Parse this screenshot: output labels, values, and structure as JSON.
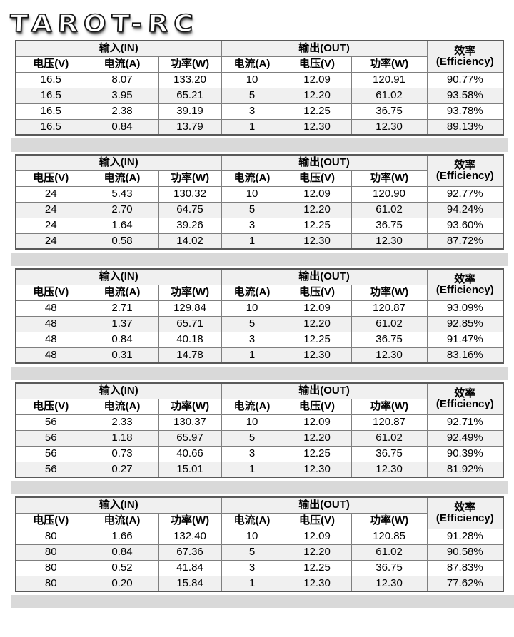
{
  "logo": {
    "text": "TAROT-RC"
  },
  "table_headers": {
    "input_group": "输入(IN)",
    "output_group": "输出(OUT)",
    "efficiency_line1": "效率",
    "efficiency_line2": "(Efficiency)",
    "columns": [
      "电压(V)",
      "电流(A)",
      "功率(W)",
      "电流(A)",
      "电压(V)",
      "功率(W)"
    ]
  },
  "tables": [
    {
      "input_voltage": "16.5",
      "rows": [
        [
          "16.5",
          "8.07",
          "133.20",
          "10",
          "12.09",
          "120.91",
          "90.77%"
        ],
        [
          "16.5",
          "3.95",
          "65.21",
          "5",
          "12.20",
          "61.02",
          "93.58%"
        ],
        [
          "16.5",
          "2.38",
          "39.19",
          "3",
          "12.25",
          "36.75",
          "93.78%"
        ],
        [
          "16.5",
          "0.84",
          "13.79",
          "1",
          "12.30",
          "12.30",
          "89.13%"
        ]
      ]
    },
    {
      "input_voltage": "24",
      "rows": [
        [
          "24",
          "5.43",
          "130.32",
          "10",
          "12.09",
          "120.90",
          "92.77%"
        ],
        [
          "24",
          "2.70",
          "64.75",
          "5",
          "12.20",
          "61.02",
          "94.24%"
        ],
        [
          "24",
          "1.64",
          "39.26",
          "3",
          "12.25",
          "36.75",
          "93.60%"
        ],
        [
          "24",
          "0.58",
          "14.02",
          "1",
          "12.30",
          "12.30",
          "87.72%"
        ]
      ]
    },
    {
      "input_voltage": "48",
      "rows": [
        [
          "48",
          "2.71",
          "129.84",
          "10",
          "12.09",
          "120.87",
          "93.09%"
        ],
        [
          "48",
          "1.37",
          "65.71",
          "5",
          "12.20",
          "61.02",
          "92.85%"
        ],
        [
          "48",
          "0.84",
          "40.18",
          "3",
          "12.25",
          "36.75",
          "91.47%"
        ],
        [
          "48",
          "0.31",
          "14.78",
          "1",
          "12.30",
          "12.30",
          "83.16%"
        ]
      ]
    },
    {
      "input_voltage": "56",
      "rows": [
        [
          "56",
          "2.33",
          "130.37",
          "10",
          "12.09",
          "120.87",
          "92.71%"
        ],
        [
          "56",
          "1.18",
          "65.97",
          "5",
          "12.20",
          "61.02",
          "92.49%"
        ],
        [
          "56",
          "0.73",
          "40.66",
          "3",
          "12.25",
          "36.75",
          "90.39%"
        ],
        [
          "56",
          "0.27",
          "15.01",
          "1",
          "12.30",
          "12.30",
          "81.92%"
        ]
      ]
    },
    {
      "input_voltage": "80",
      "rows": [
        [
          "80",
          "1.66",
          "132.40",
          "10",
          "12.09",
          "120.85",
          "91.28%"
        ],
        [
          "80",
          "0.84",
          "67.36",
          "5",
          "12.20",
          "61.02",
          "90.58%"
        ],
        [
          "80",
          "0.52",
          "41.84",
          "3",
          "12.25",
          "36.75",
          "87.83%"
        ],
        [
          "80",
          "0.20",
          "15.84",
          "1",
          "12.30",
          "12.30",
          "77.62%"
        ]
      ]
    }
  ],
  "colors": {
    "separator_band": "#d9d9d9",
    "row_stripe": "#f0f0f0",
    "table_border": "#595959",
    "cell_border": "#7f7f7f"
  }
}
